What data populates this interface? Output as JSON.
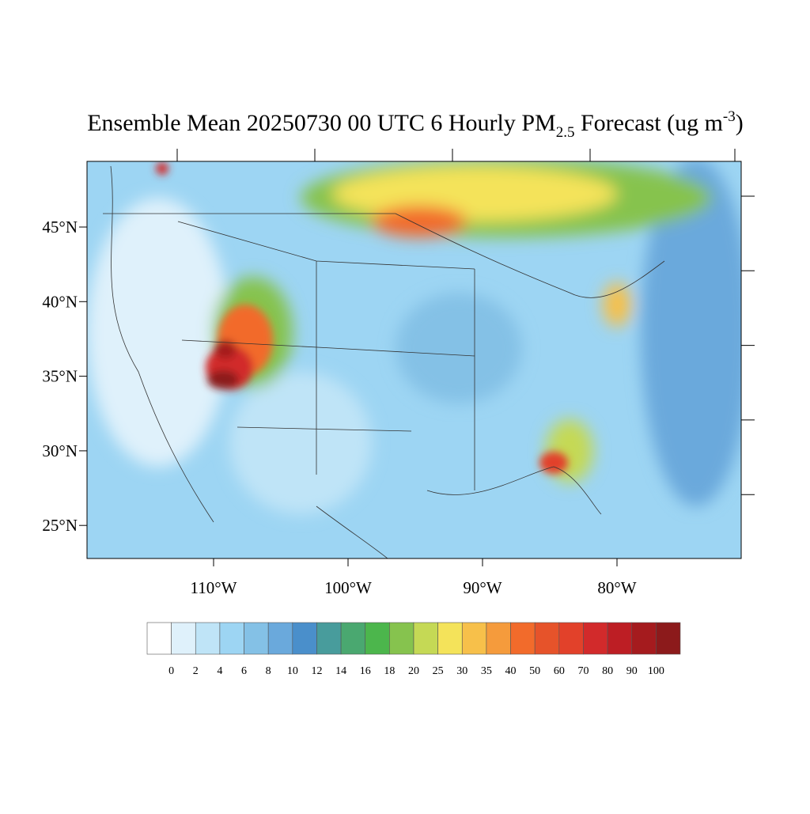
{
  "header": {
    "title_main": "Ensemble Mean 20250730 00 UTC 6 Hourly PM",
    "title_sub": "2.5",
    "title_after": " Forecast (ug m",
    "title_sup": "-3",
    "title_end": ")"
  },
  "map": {
    "lat_labels": [
      "45°N",
      "40°N",
      "35°N",
      "30°N",
      "25°N"
    ],
    "lon_labels": [
      "110°W",
      "100°W",
      "90°W",
      "80°W"
    ]
  },
  "colorbar": {
    "levels": [
      0,
      2,
      4,
      6,
      8,
      10,
      12,
      14,
      16,
      18,
      20,
      25,
      30,
      35,
      40,
      50,
      60,
      70,
      80,
      90,
      100
    ],
    "colors": [
      "#ffffff",
      "#dff1fb",
      "#bfe4f7",
      "#9dd5f3",
      "#84c1e6",
      "#6aa9dc",
      "#4a8fcb",
      "#489c9c",
      "#4aa870",
      "#4cb64c",
      "#86c34e",
      "#c5d955",
      "#f4e35a",
      "#f7c04a",
      "#f59b3c",
      "#f26b2b",
      "#e6532a",
      "#e2412a",
      "#d22a2b",
      "#bd1e24",
      "#a51b1e",
      "#8c1a1b"
    ]
  }
}
